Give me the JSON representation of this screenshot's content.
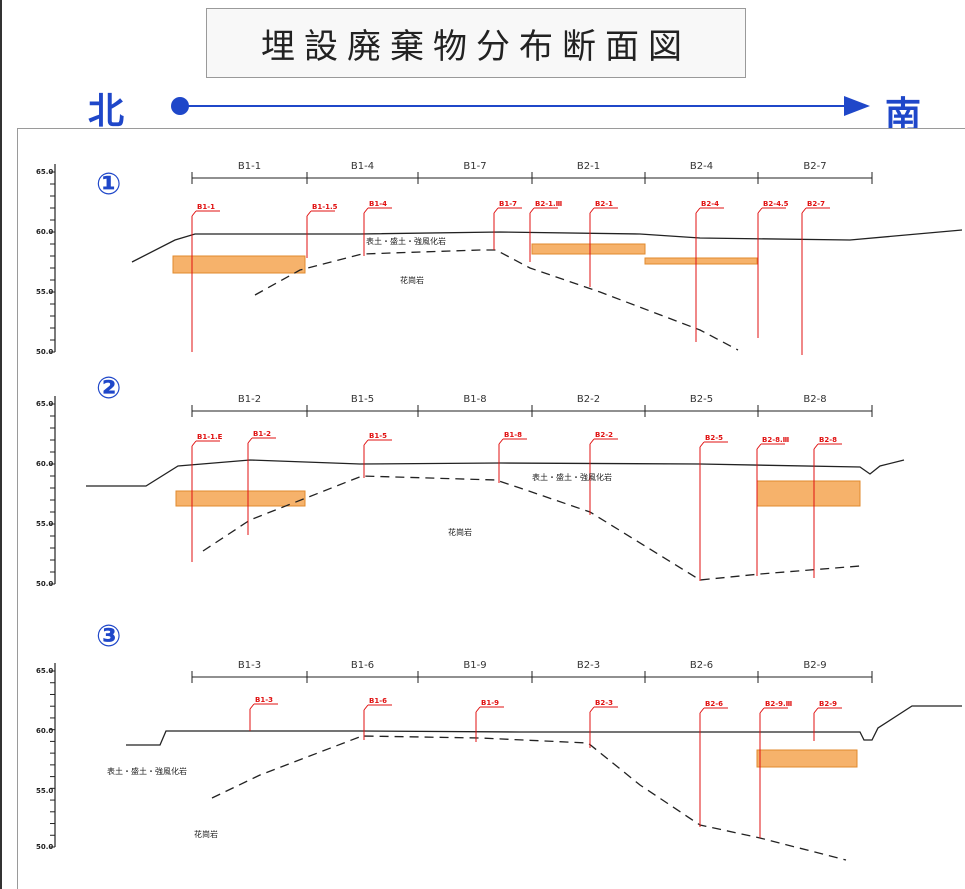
{
  "title": "埋設廃棄物分布断面図",
  "direction": {
    "north": "北",
    "south": "南"
  },
  "sections": [
    {
      "marker": "①",
      "axis_ticks": [
        "65.0",
        "60.0",
        "55.0",
        "50.0"
      ],
      "spans": [
        "B1-1",
        "B1-4",
        "B1-7",
        "B2-1",
        "B2-4",
        "B2-7"
      ],
      "boreholes": [
        "B1-1",
        "B1-1.5",
        "B1-4",
        "B1-7",
        "B2-1.Ⅲ",
        "B2-1",
        "B2-4",
        "B2-4.5",
        "B2-7"
      ],
      "labels": {
        "upper": "表土・盛土・強風化岩",
        "lower": "花崗岩"
      }
    },
    {
      "marker": "②",
      "axis_ticks": [
        "65.0",
        "60.0",
        "55.0",
        "50.0"
      ],
      "spans": [
        "B1-2",
        "B1-5",
        "B1-8",
        "B2-2",
        "B2-5",
        "B2-8"
      ],
      "boreholes": [
        "B1-1.E",
        "B1-2",
        "B1-5",
        "B1-8",
        "B2-2",
        "B2-5",
        "B2-8.Ⅲ",
        "B2-8"
      ],
      "labels": {
        "upper": "表土・盛土・強風化岩",
        "lower": "花崗岩"
      }
    },
    {
      "marker": "③",
      "axis_ticks": [
        "65.0",
        "60.0",
        "55.0",
        "50.0"
      ],
      "spans": [
        "B1-3",
        "B1-6",
        "B1-9",
        "B2-3",
        "B2-6",
        "B2-9"
      ],
      "boreholes": [
        "B1-3",
        "B1-6",
        "B1-9",
        "B2-3",
        "B2-6",
        "B2-9.Ⅲ",
        "B2-9"
      ],
      "labels": {
        "upper": "表土・盛土・強風化岩",
        "lower": "花崗岩"
      }
    }
  ],
  "colors": {
    "direction": "#1f47c9",
    "marker": "#1f47c9",
    "borehole": "#e01010",
    "waste": "#f6b26b",
    "waste_edge": "#e08a2c"
  }
}
